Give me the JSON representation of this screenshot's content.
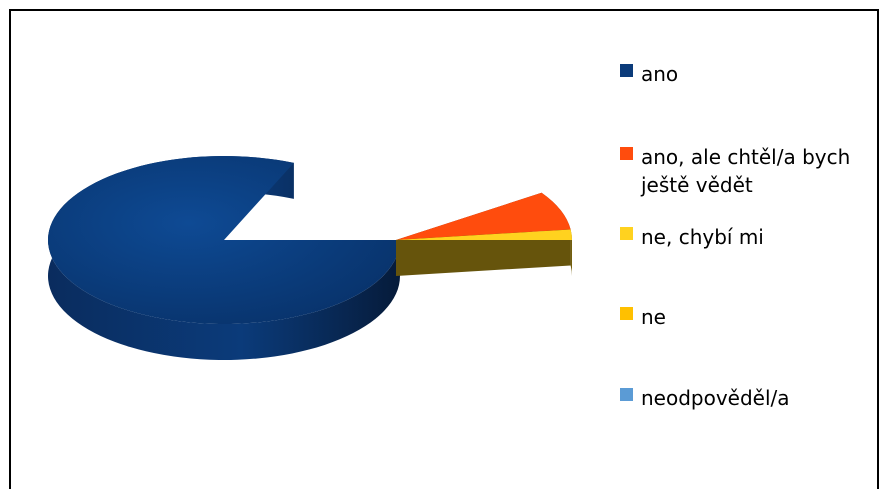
{
  "chart_data": {
    "type": "pie",
    "is_3d": true,
    "title": "",
    "categories": [
      "ano",
      "ano, ale chtěl/a bych ještě vědět",
      "ne, chybí mi",
      "ne",
      "neodpověděl/a"
    ],
    "values": [
      90.5,
      7.5,
      2.0,
      0,
      0
    ],
    "colors": [
      "#0B3B7A",
      "#FF4C0D",
      "#FFD21F",
      "#FFC000",
      "#5B9BD5"
    ],
    "legend_position": "right"
  }
}
